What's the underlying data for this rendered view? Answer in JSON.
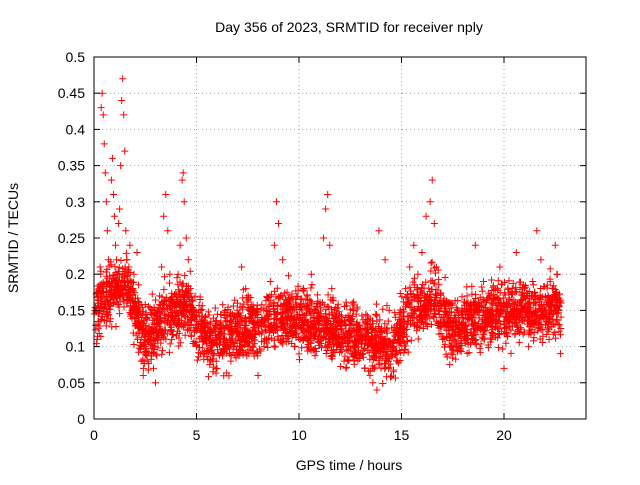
{
  "chart_data": {
    "type": "scatter",
    "title": "Day 356 of 2023, SRMTID for receiver nply",
    "xlabel": "GPS time / hours",
    "ylabel": "SRMTID / TECUs",
    "xlim": [
      0,
      24
    ],
    "ylim": [
      0,
      0.5
    ],
    "xticks": [
      0,
      5,
      10,
      15,
      20
    ],
    "yticks": [
      0,
      0.05,
      0.1,
      0.15,
      0.2,
      0.25,
      0.3,
      0.35,
      0.4,
      0.45,
      0.5
    ],
    "xtick_labels": [
      "0",
      "5",
      "10",
      "15",
      "20"
    ],
    "ytick_labels": [
      "0",
      "0.05",
      "0.1",
      "0.15",
      "0.2",
      "0.25",
      "0.3",
      "0.35",
      "0.4",
      "0.45",
      "0.5"
    ],
    "grid": true,
    "marker": "plus",
    "colors": {
      "series": "#ff0000",
      "grid": "#a0a0a0",
      "axis": "#000000"
    },
    "series": [
      {
        "name": "",
        "points": [
          [
            0.05,
            0.15
          ],
          [
            0.1,
            0.13
          ],
          [
            0.15,
            0.11
          ],
          [
            0.2,
            0.16
          ],
          [
            0.25,
            0.18
          ],
          [
            0.3,
            0.21
          ],
          [
            0.35,
            0.43
          ],
          [
            0.4,
            0.45
          ],
          [
            0.45,
            0.42
          ],
          [
            0.5,
            0.38
          ],
          [
            0.55,
            0.34
          ],
          [
            0.6,
            0.3
          ],
          [
            0.65,
            0.26
          ],
          [
            0.7,
            0.22
          ],
          [
            0.75,
            0.19
          ],
          [
            0.8,
            0.17
          ],
          [
            0.85,
            0.33
          ],
          [
            0.9,
            0.36
          ],
          [
            0.95,
            0.31
          ],
          [
            1.0,
            0.28
          ],
          [
            1.05,
            0.24
          ],
          [
            1.1,
            0.22
          ],
          [
            1.15,
            0.2
          ],
          [
            1.2,
            0.27
          ],
          [
            1.25,
            0.29
          ],
          [
            1.3,
            0.35
          ],
          [
            1.35,
            0.44
          ],
          [
            1.4,
            0.47
          ],
          [
            1.45,
            0.42
          ],
          [
            1.5,
            0.37
          ],
          [
            1.55,
            0.26
          ],
          [
            1.6,
            0.22
          ],
          [
            1.65,
            0.19
          ],
          [
            1.7,
            0.21
          ],
          [
            1.75,
            0.24
          ],
          [
            1.8,
            0.17
          ],
          [
            1.85,
            0.15
          ],
          [
            1.9,
            0.18
          ],
          [
            1.95,
            0.2
          ],
          [
            2.0,
            0.16
          ],
          [
            2.1,
            0.23
          ],
          [
            2.2,
            0.12
          ],
          [
            2.3,
            0.08
          ],
          [
            2.4,
            0.06
          ],
          [
            2.5,
            0.1
          ],
          [
            2.6,
            0.14
          ],
          [
            2.7,
            0.12
          ],
          [
            2.8,
            0.09
          ],
          [
            2.9,
            0.07
          ],
          [
            3.0,
            0.05
          ],
          [
            3.1,
            0.11
          ],
          [
            3.2,
            0.17
          ],
          [
            3.3,
            0.21
          ],
          [
            3.4,
            0.28
          ],
          [
            3.5,
            0.31
          ],
          [
            3.6,
            0.26
          ],
          [
            3.7,
            0.2
          ],
          [
            3.8,
            0.15
          ],
          [
            3.9,
            0.13
          ],
          [
            4.0,
            0.17
          ],
          [
            4.1,
            0.2
          ],
          [
            4.2,
            0.24
          ],
          [
            4.3,
            0.33
          ],
          [
            4.35,
            0.34
          ],
          [
            4.4,
            0.3
          ],
          [
            4.5,
            0.25
          ],
          [
            4.6,
            0.22
          ],
          [
            4.7,
            0.18
          ],
          [
            4.8,
            0.14
          ],
          [
            4.9,
            0.12
          ],
          [
            5.0,
            0.1
          ],
          [
            5.2,
            0.09
          ],
          [
            5.4,
            0.13
          ],
          [
            5.6,
            0.11
          ],
          [
            5.8,
            0.08
          ],
          [
            6.0,
            0.07
          ],
          [
            6.2,
            0.12
          ],
          [
            6.4,
            0.15
          ],
          [
            6.6,
            0.13
          ],
          [
            6.8,
            0.1
          ],
          [
            7.0,
            0.16
          ],
          [
            7.2,
            0.21
          ],
          [
            7.4,
            0.18
          ],
          [
            7.6,
            0.14
          ],
          [
            7.8,
            0.09
          ],
          [
            8.0,
            0.06
          ],
          [
            8.2,
            0.12
          ],
          [
            8.4,
            0.15
          ],
          [
            8.6,
            0.19
          ],
          [
            8.8,
            0.24
          ],
          [
            8.9,
            0.3
          ],
          [
            9.0,
            0.27
          ],
          [
            9.2,
            0.22
          ],
          [
            9.4,
            0.16
          ],
          [
            9.6,
            0.12
          ],
          [
            9.8,
            0.1
          ],
          [
            10.0,
            0.09
          ],
          [
            10.2,
            0.13
          ],
          [
            10.4,
            0.17
          ],
          [
            10.6,
            0.2
          ],
          [
            10.8,
            0.15
          ],
          [
            11.0,
            0.12
          ],
          [
            11.2,
            0.25
          ],
          [
            11.3,
            0.29
          ],
          [
            11.4,
            0.31
          ],
          [
            11.5,
            0.24
          ],
          [
            11.6,
            0.18
          ],
          [
            11.8,
            0.14
          ],
          [
            12.0,
            0.1
          ],
          [
            12.2,
            0.08
          ],
          [
            12.4,
            0.12
          ],
          [
            12.6,
            0.16
          ],
          [
            12.8,
            0.13
          ],
          [
            13.0,
            0.09
          ],
          [
            13.2,
            0.07
          ],
          [
            13.4,
            0.11
          ],
          [
            13.6,
            0.05
          ],
          [
            13.8,
            0.04
          ],
          [
            13.9,
            0.26
          ],
          [
            14.0,
            0.12
          ],
          [
            14.2,
            0.22
          ],
          [
            14.4,
            0.15
          ],
          [
            14.6,
            0.1
          ],
          [
            14.8,
            0.08
          ],
          [
            15.0,
            0.13
          ],
          [
            15.2,
            0.18
          ],
          [
            15.4,
            0.21
          ],
          [
            15.6,
            0.24
          ],
          [
            15.8,
            0.2
          ],
          [
            16.0,
            0.23
          ],
          [
            16.2,
            0.28
          ],
          [
            16.4,
            0.3
          ],
          [
            16.5,
            0.33
          ],
          [
            16.6,
            0.27
          ],
          [
            16.7,
            0.21
          ],
          [
            16.8,
            0.15
          ],
          [
            17.0,
            0.11
          ],
          [
            17.2,
            0.13
          ],
          [
            17.4,
            0.16
          ],
          [
            17.6,
            0.12
          ],
          [
            17.8,
            0.1
          ],
          [
            18.0,
            0.14
          ],
          [
            18.2,
            0.17
          ],
          [
            18.4,
            0.12
          ],
          [
            18.6,
            0.24
          ],
          [
            18.8,
            0.15
          ],
          [
            19.0,
            0.19
          ],
          [
            19.2,
            0.13
          ],
          [
            19.4,
            0.11
          ],
          [
            19.6,
            0.16
          ],
          [
            19.8,
            0.21
          ],
          [
            20.0,
            0.07
          ],
          [
            20.2,
            0.14
          ],
          [
            20.4,
            0.18
          ],
          [
            20.6,
            0.23
          ],
          [
            20.8,
            0.16
          ],
          [
            21.0,
            0.12
          ],
          [
            21.2,
            0.1
          ],
          [
            21.4,
            0.19
          ],
          [
            21.6,
            0.26
          ],
          [
            21.8,
            0.22
          ],
          [
            22.0,
            0.15
          ],
          [
            22.2,
            0.11
          ],
          [
            22.4,
            0.18
          ],
          [
            22.5,
            0.24
          ],
          [
            22.6,
            0.2
          ],
          [
            22.7,
            0.13
          ]
        ]
      }
    ],
    "density": {
      "x_end": 22.8,
      "per_hour": 140,
      "baseline_segments": [
        [
          0,
          0.15
        ],
        [
          1.5,
          0.19
        ],
        [
          2.5,
          0.11
        ],
        [
          3.5,
          0.14
        ],
        [
          4.5,
          0.16
        ],
        [
          5.5,
          0.11
        ],
        [
          7.0,
          0.12
        ],
        [
          9.0,
          0.14
        ],
        [
          11.0,
          0.13
        ],
        [
          13.0,
          0.11
        ],
        [
          14.5,
          0.1
        ],
        [
          15.5,
          0.15
        ],
        [
          16.5,
          0.17
        ],
        [
          17.5,
          0.12
        ],
        [
          19.0,
          0.14
        ],
        [
          20.5,
          0.15
        ],
        [
          22.8,
          0.15
        ]
      ],
      "spread": 0.035,
      "seed": 356
    }
  }
}
